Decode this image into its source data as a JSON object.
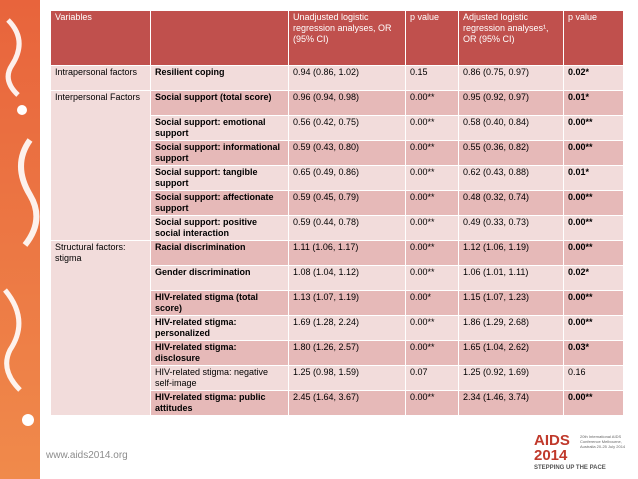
{
  "table": {
    "header": [
      "Variables",
      "Unadjusted logistic regression analyses, OR (95% CI)",
      "p value",
      "Adjusted logistic regression analyses¹, OR (95% CI)",
      "p value"
    ],
    "rows": [
      {
        "group": "Intrapersonal factors",
        "cells": [
          "Resilient coping",
          "0.94 (0.86, 1.02)",
          "0.15",
          "0.86 (0.75, 0.97)",
          "0.02*"
        ]
      },
      {
        "group": "Interpersonal Factors",
        "cells": [
          "Social support (total score)",
          "0.96 (0.94, 0.98)",
          "0.00**",
          "0.95 (0.92, 0.97)",
          "0.01*"
        ]
      },
      {
        "cells": [
          "Social support: emotional support",
          "0.56 (0.42, 0.75)",
          "0.00**",
          "0.58 (0.40, 0.84)",
          "0.00**"
        ]
      },
      {
        "cells": [
          "Social support: informational support",
          "0.59 (0.43, 0.80)",
          "0.00**",
          "0.55 (0.36, 0.82)",
          "0.00**"
        ]
      },
      {
        "cells": [
          "Social support: tangible support",
          "0.65 (0.49, 0.86)",
          "0.00**",
          "0.62 (0.43, 0.88)",
          "0.01*"
        ]
      },
      {
        "cells": [
          "Social support: affectionate support",
          "0.59 (0.45, 0.79)",
          "0.00**",
          "0.48 (0.32, 0.74)",
          "0.00**"
        ]
      },
      {
        "cells": [
          "Social support: positive social interaction",
          "0.59 (0.44, 0.78)",
          "0.00**",
          "0.49 (0.33, 0.73)",
          "0.00**"
        ]
      },
      {
        "group": "Structural factors: stigma",
        "cells": [
          "Racial discrimination",
          "1.11 (1.06, 1.17)",
          "0.00**",
          "1.12 (1.06, 1.19)",
          "0.00**"
        ]
      },
      {
        "cells": [
          "Gender discrimination",
          "1.08 (1.04, 1.12)",
          "0.00**",
          "1.06 (1.01, 1.11)",
          "0.02*"
        ]
      },
      {
        "cells": [
          "HIV-related stigma (total score)",
          "1.13 (1.07, 1.19)",
          "0.00*",
          "1.15 (1.07, 1.23)",
          "0.00**"
        ]
      },
      {
        "cells": [
          "HIV-related stigma: personalized",
          "1.69 (1.28, 2.24)",
          "0.00**",
          "1.86 (1.29, 2.68)",
          "0.00**"
        ]
      },
      {
        "cells": [
          "HIV-related stigma: disclosure",
          "1.80 (1.26, 2.57)",
          "0.00**",
          "1.65 (1.04, 2.62)",
          "0.03*"
        ]
      },
      {
        "cells": [
          "HIV-related stigma: negative self-image",
          "1.25 (0.98, 1.59)",
          "0.07",
          "1.25 (0.92, 1.69)",
          "0.16"
        ]
      },
      {
        "cells": [
          "HIV-related stigma: public attitudes",
          "2.45 (1.64, 3.67)",
          "0.00**",
          "2.34 (1.46, 3.74)",
          "0.00**"
        ]
      }
    ]
  },
  "footer": {
    "url": "www.aids2014.org",
    "logo": {
      "name": "AIDS",
      "year": "2014",
      "tagline": "STEPPING UP THE PACE",
      "note": "20th International AIDS Conference Melbourne, Australia 20-25 July 2014"
    }
  }
}
